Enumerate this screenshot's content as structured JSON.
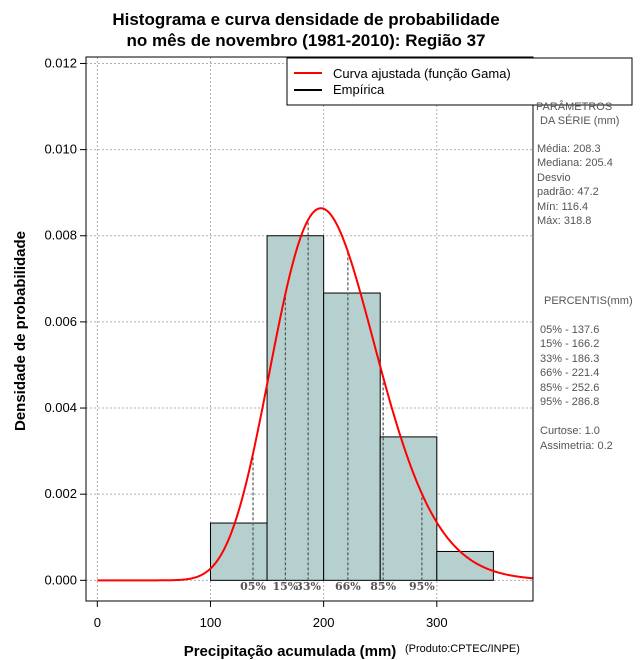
{
  "chart_data": {
    "type": "histogram",
    "title_lines": [
      "Histograma e curva densidade de probabilidade",
      "no mês de novembro (1981-2010): Região 37"
    ],
    "xlabel": "Precipitação acumulada (mm)",
    "ylabel": "Densidade de probabilidade",
    "credit": "(Produto:CPTEC/INPE)",
    "xlim": [
      -10,
      385
    ],
    "ylim": [
      -0.00048,
      0.01215
    ],
    "x_ticks": [
      0,
      100,
      200,
      300
    ],
    "y_ticks": [
      0.0,
      0.002,
      0.004,
      0.006,
      0.008,
      0.01,
      0.012
    ],
    "y_tick_labels": [
      "0.000",
      "0.002",
      "0.004",
      "0.006",
      "0.008",
      "0.010",
      "0.012"
    ],
    "grid": true,
    "bins": [
      {
        "from": 100,
        "to": 150,
        "density": 0.00133
      },
      {
        "from": 150,
        "to": 200,
        "density": 0.008
      },
      {
        "from": 200,
        "to": 250,
        "density": 0.00667
      },
      {
        "from": 250,
        "to": 300,
        "density": 0.00333
      },
      {
        "from": 300,
        "to": 350,
        "density": 0.00067
      }
    ],
    "bar_color": "#b5d0cf",
    "curve": {
      "name": "Curva ajustada (função Gama)",
      "color": "#ff0000",
      "mean": 208.3,
      "sd": 47.2,
      "x_start": 0,
      "x_end": 385
    },
    "legend": [
      {
        "label": "Curva ajustada (função Gama)",
        "color": "#ff0000"
      },
      {
        "label": "Empírica",
        "color": "#000000"
      }
    ],
    "percentile_markers": [
      {
        "label": "05%",
        "value": 137.6
      },
      {
        "label": "15%",
        "value": 166.2
      },
      {
        "label": "33%",
        "value": 186.3
      },
      {
        "label": "66%",
        "value": 221.4
      },
      {
        "label": "85%",
        "value": 252.6
      },
      {
        "label": "95%",
        "value": 286.8
      }
    ]
  },
  "side_panel": {
    "params_title_1": "PARÂMETROS",
    "params_title_2": "DA SÉRIE (mm)",
    "params": [
      "Média:  208.3",
      "Mediana:  205.4",
      "Desvio",
      "padrão:  47.2",
      "Mín:  116.4",
      "Máx:  318.8"
    ],
    "percentis_title": "PERCENTIS(mm)",
    "percentis": [
      "05% -  137.6",
      "15% -  166.2",
      "33% -  186.3",
      "66% -  221.4",
      "85% -  252.6",
      "95% -  286.8"
    ],
    "stats": [
      "Curtose:  1.0",
      "Assimetria:  0.2"
    ]
  }
}
